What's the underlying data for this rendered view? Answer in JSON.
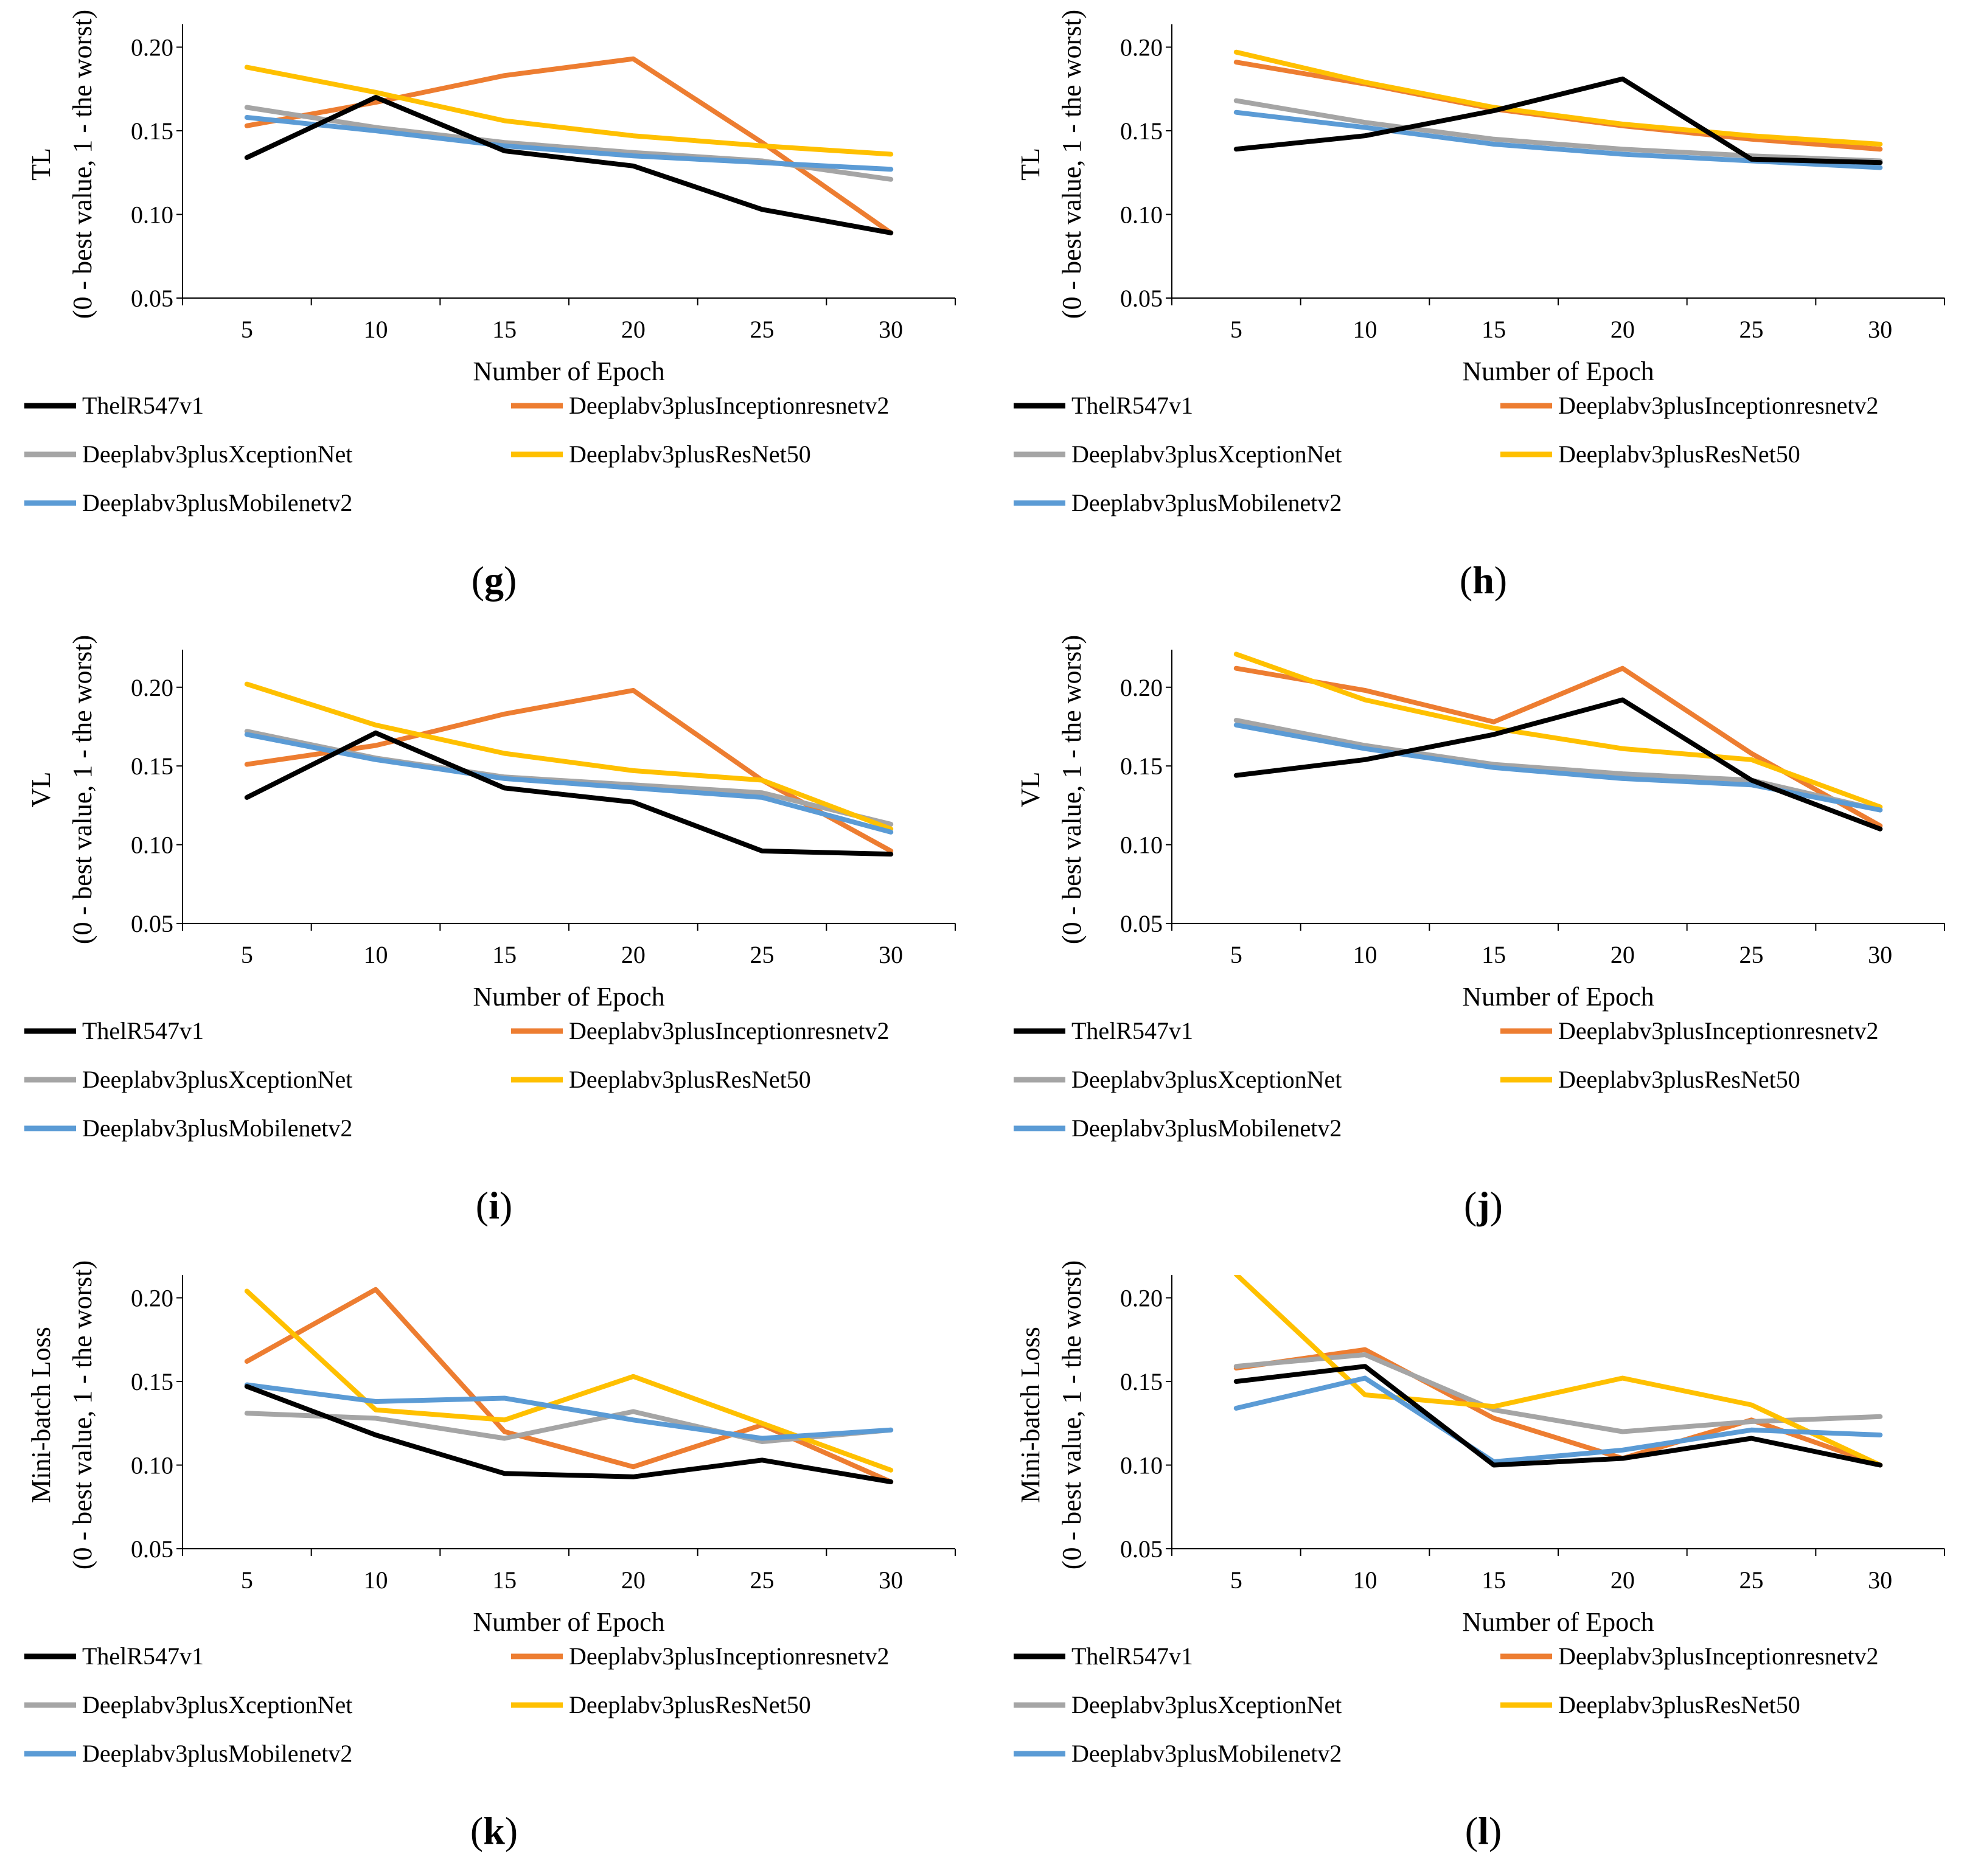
{
  "series_names": [
    "ThelR547v1",
    "Deeplabv3plusInceptionresnetv2",
    "Deeplabv3plusXceptionNet",
    "Deeplabv3plusResNet50",
    "Deeplabv3plusMobilenetv2"
  ],
  "series_colors": [
    "#000000",
    "#ED7D31",
    "#A5A5A5",
    "#FFC000",
    "#5B9BD5"
  ],
  "chart_data": [
    {
      "panel": "g",
      "type": "line",
      "caption_label": "g",
      "ylabel": "TL",
      "ylabel_sub": "(0 - best value, 1 - the worst)",
      "xlabel": "Number of Epoch",
      "x": [
        5,
        10,
        15,
        20,
        25,
        30
      ],
      "x_tick_labels": [
        "5",
        "10",
        "15",
        "20",
        "25",
        "30"
      ],
      "y_tick_labels": [
        "0.05",
        "0.10",
        "0.15",
        "0.20"
      ],
      "yticks": [
        0.05,
        0.1,
        0.15,
        0.2
      ],
      "ylim": [
        0.05,
        0.21
      ],
      "series": [
        {
          "name": "ThelR547v1",
          "values": [
            0.134,
            0.17,
            0.138,
            0.129,
            0.103,
            0.089
          ]
        },
        {
          "name": "Deeplabv3plusInceptionresnetv2",
          "values": [
            0.153,
            0.167,
            0.183,
            0.193,
            0.143,
            0.089
          ]
        },
        {
          "name": "Deeplabv3plusXceptionNet",
          "values": [
            0.164,
            0.152,
            0.143,
            0.137,
            0.132,
            0.121
          ]
        },
        {
          "name": "Deeplabv3plusResNet50",
          "values": [
            0.188,
            0.173,
            0.156,
            0.147,
            0.141,
            0.136
          ]
        },
        {
          "name": "Deeplabv3plusMobilenetv2",
          "values": [
            0.158,
            0.15,
            0.141,
            0.135,
            0.131,
            0.127
          ]
        }
      ]
    },
    {
      "panel": "h",
      "type": "line",
      "caption_label": "h",
      "ylabel": "TL",
      "ylabel_sub": "(0 - best value, 1 - the worst)",
      "xlabel": "Number of Epoch",
      "x": [
        5,
        10,
        15,
        20,
        25,
        30
      ],
      "x_tick_labels": [
        "5",
        "10",
        "15",
        "20",
        "25",
        "30"
      ],
      "y_tick_labels": [
        "0.05",
        "0.10",
        "0.15",
        "0.20"
      ],
      "yticks": [
        0.05,
        0.1,
        0.15,
        0.2
      ],
      "ylim": [
        0.05,
        0.21
      ],
      "series": [
        {
          "name": "ThelR547v1",
          "values": [
            0.139,
            0.147,
            0.162,
            0.181,
            0.133,
            0.131
          ]
        },
        {
          "name": "Deeplabv3plusInceptionresnetv2",
          "values": [
            0.191,
            0.178,
            0.163,
            0.153,
            0.145,
            0.139
          ]
        },
        {
          "name": "Deeplabv3plusXceptionNet",
          "values": [
            0.168,
            0.155,
            0.145,
            0.139,
            0.135,
            0.132
          ]
        },
        {
          "name": "Deeplabv3plusResNet50",
          "values": [
            0.197,
            0.179,
            0.164,
            0.154,
            0.147,
            0.142
          ]
        },
        {
          "name": "Deeplabv3plusMobilenetv2",
          "values": [
            0.161,
            0.152,
            0.142,
            0.136,
            0.132,
            0.128
          ]
        }
      ]
    },
    {
      "panel": "i",
      "type": "line",
      "caption_label": "i",
      "ylabel": "VL",
      "ylabel_sub": "(0 - best value, 1 - the worst)",
      "xlabel": "Number of Epoch",
      "x": [
        5,
        10,
        15,
        20,
        25,
        30
      ],
      "x_tick_labels": [
        "5",
        "10",
        "15",
        "20",
        "25",
        "30"
      ],
      "y_tick_labels": [
        "0.05",
        "0.10",
        "0.15",
        "0.20"
      ],
      "yticks": [
        0.05,
        0.1,
        0.15,
        0.2
      ],
      "ylim": [
        0.05,
        0.22
      ],
      "series": [
        {
          "name": "ThelR547v1",
          "values": [
            0.13,
            0.171,
            0.136,
            0.127,
            0.096,
            0.094
          ]
        },
        {
          "name": "Deeplabv3plusInceptionresnetv2",
          "values": [
            0.151,
            0.163,
            0.183,
            0.198,
            0.141,
            0.096
          ]
        },
        {
          "name": "Deeplabv3plusXceptionNet",
          "values": [
            0.172,
            0.155,
            0.143,
            0.138,
            0.133,
            0.113
          ]
        },
        {
          "name": "Deeplabv3plusResNet50",
          "values": [
            0.202,
            0.176,
            0.158,
            0.147,
            0.141,
            0.11
          ]
        },
        {
          "name": "Deeplabv3plusMobilenetv2",
          "values": [
            0.17,
            0.154,
            0.142,
            0.136,
            0.13,
            0.108
          ]
        }
      ]
    },
    {
      "panel": "j",
      "type": "line",
      "caption_label": "j",
      "ylabel": "VL",
      "ylabel_sub": "(0 - best value, 1 - the worst)",
      "xlabel": "Number of Epoch",
      "x": [
        5,
        10,
        15,
        20,
        25,
        30
      ],
      "x_tick_labels": [
        "5",
        "10",
        "15",
        "20",
        "25",
        "30"
      ],
      "y_tick_labels": [
        "0.05",
        "0.10",
        "0.15",
        "0.20"
      ],
      "yticks": [
        0.05,
        0.1,
        0.15,
        0.2
      ],
      "ylim": [
        0.05,
        0.22
      ],
      "series": [
        {
          "name": "ThelR547v1",
          "values": [
            0.144,
            0.154,
            0.17,
            0.192,
            0.141,
            0.11
          ]
        },
        {
          "name": "Deeplabv3plusInceptionresnetv2",
          "values": [
            0.212,
            0.198,
            0.178,
            0.212,
            0.158,
            0.112
          ]
        },
        {
          "name": "Deeplabv3plusXceptionNet",
          "values": [
            0.179,
            0.163,
            0.151,
            0.145,
            0.141,
            0.122
          ]
        },
        {
          "name": "Deeplabv3plusResNet50",
          "values": [
            0.221,
            0.192,
            0.174,
            0.161,
            0.154,
            0.124
          ]
        },
        {
          "name": "Deeplabv3plusMobilenetv2",
          "values": [
            0.176,
            0.161,
            0.149,
            0.142,
            0.138,
            0.122
          ]
        }
      ]
    },
    {
      "panel": "k",
      "type": "line",
      "caption_label": "k",
      "ylabel": "Mini-batch Loss",
      "ylabel_sub": "(0 - best value, 1 - the worst)",
      "xlabel": "Number of Epoch",
      "x": [
        5,
        10,
        15,
        20,
        25,
        30
      ],
      "x_tick_labels": [
        "5",
        "10",
        "15",
        "20",
        "25",
        "30"
      ],
      "y_tick_labels": [
        "0.05",
        "0.10",
        "0.15",
        "0.20"
      ],
      "yticks": [
        0.05,
        0.1,
        0.15,
        0.2
      ],
      "ylim": [
        0.05,
        0.21
      ],
      "series": [
        {
          "name": "ThelR547v1",
          "values": [
            0.147,
            0.118,
            0.095,
            0.093,
            0.103,
            0.09
          ]
        },
        {
          "name": "Deeplabv3plusInceptionresnetv2",
          "values": [
            0.162,
            0.205,
            0.12,
            0.099,
            0.124,
            0.09
          ]
        },
        {
          "name": "Deeplabv3plusXceptionNet",
          "values": [
            0.131,
            0.128,
            0.116,
            0.132,
            0.114,
            0.121
          ]
        },
        {
          "name": "Deeplabv3plusResNet50",
          "values": [
            0.204,
            0.133,
            0.127,
            0.153,
            0.125,
            0.097
          ]
        },
        {
          "name": "Deeplabv3plusMobilenetv2",
          "values": [
            0.148,
            0.138,
            0.14,
            0.127,
            0.116,
            0.121
          ]
        }
      ]
    },
    {
      "panel": "l",
      "type": "line",
      "caption_label": "l",
      "ylabel": "Mini-batch Loss",
      "ylabel_sub": "(0 - best value, 1 - the worst)",
      "xlabel": "Number of Epoch",
      "x": [
        5,
        10,
        15,
        20,
        25,
        30
      ],
      "x_tick_labels": [
        "5",
        "10",
        "15",
        "20",
        "25",
        "30"
      ],
      "y_tick_labels": [
        "0.05",
        "0.10",
        "0.15",
        "0.20"
      ],
      "yticks": [
        0.05,
        0.1,
        0.15,
        0.2
      ],
      "ylim": [
        0.05,
        0.21
      ],
      "series": [
        {
          "name": "ThelR547v1",
          "values": [
            0.15,
            0.159,
            0.1,
            0.104,
            0.116,
            0.1
          ]
        },
        {
          "name": "Deeplabv3plusInceptionresnetv2",
          "values": [
            0.158,
            0.169,
            0.128,
            0.104,
            0.127,
            0.1
          ]
        },
        {
          "name": "Deeplabv3plusXceptionNet",
          "values": [
            0.159,
            0.166,
            0.133,
            0.12,
            0.126,
            0.129
          ]
        },
        {
          "name": "Deeplabv3plusResNet50",
          "values": [
            0.214,
            0.142,
            0.135,
            0.152,
            0.136,
            0.1
          ]
        },
        {
          "name": "Deeplabv3plusMobilenetv2",
          "values": [
            0.134,
            0.152,
            0.102,
            0.109,
            0.121,
            0.118
          ]
        }
      ]
    }
  ]
}
